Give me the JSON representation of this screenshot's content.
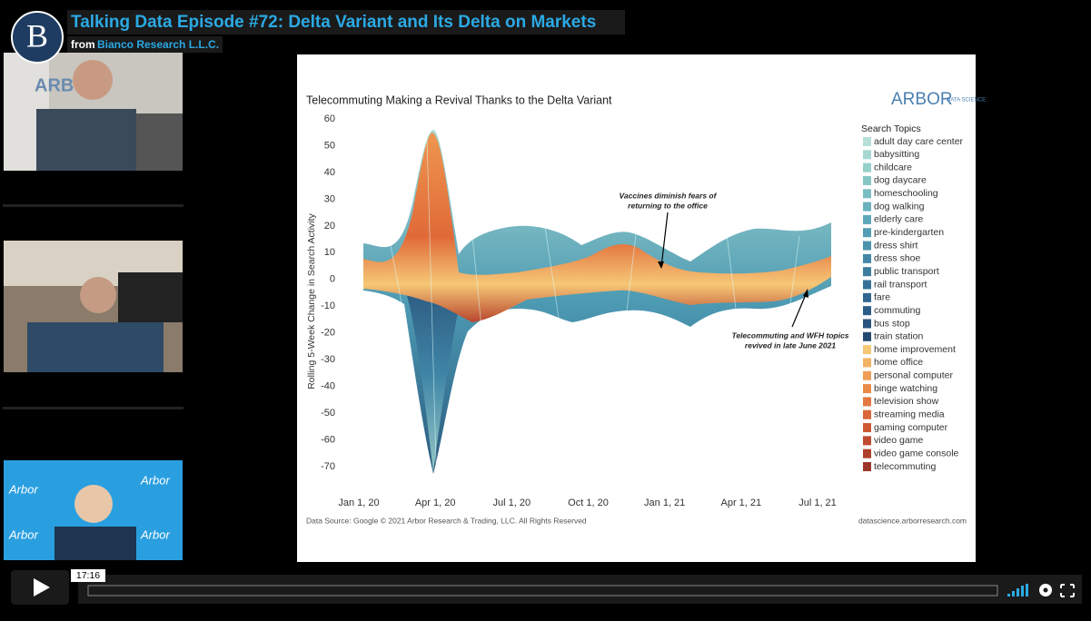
{
  "video": {
    "title": "Talking Data Episode #72: Delta Variant and Its Delta on Markets",
    "byline": "from",
    "channel": "Bianco Research L.L.C.",
    "logo": "B",
    "time": "17:16"
  },
  "slide": {
    "title": "Telecommuting Making a Revival Thanks to the Delta Variant",
    "logo": "ARBOR",
    "logo_sub": "DATA SCIENCE",
    "y_label": "Rolling 5-Week Change in Search Activity",
    "yticks": [
      60,
      50,
      40,
      30,
      20,
      10,
      0,
      -10,
      -20,
      -30,
      -40,
      -50,
      -60,
      -70
    ],
    "x_labels": [
      "Jan 1, 20",
      "Apr 1, 20",
      "Jul 1, 20",
      "Oct 1, 20",
      "Jan 1, 21",
      "Apr 1, 21",
      "Jul 1, 21"
    ],
    "annotations": [
      {
        "lines": [
          "Vaccines diminish fears of",
          "returning to the office"
        ]
      },
      {
        "lines": [
          "Telecommuting and WFH topics",
          "revived in late June 2021"
        ]
      }
    ],
    "legend": {
      "title": "Search Topics",
      "items": [
        {
          "name": "adult day care center",
          "color": "#b7e0d8"
        },
        {
          "name": "babysitting",
          "color": "#a6d8d1"
        },
        {
          "name": "childcare",
          "color": "#95d0cb"
        },
        {
          "name": "dog daycare",
          "color": "#86c7c6"
        },
        {
          "name": "homeschooling",
          "color": "#78bdc2"
        },
        {
          "name": "dog walking",
          "color": "#6ab3be"
        },
        {
          "name": "elderly care",
          "color": "#5ea9b9"
        },
        {
          "name": "pre-kindergarten",
          "color": "#539eb4"
        },
        {
          "name": "dress shirt",
          "color": "#4a93ad"
        },
        {
          "name": "dress shoe",
          "color": "#4288a7"
        },
        {
          "name": "public transport",
          "color": "#3c7da0"
        },
        {
          "name": "rail transport",
          "color": "#367298"
        },
        {
          "name": "fare",
          "color": "#30678f"
        },
        {
          "name": "commuting",
          "color": "#2c5d86"
        },
        {
          "name": "bus stop",
          "color": "#28537c"
        },
        {
          "name": "train station",
          "color": "#244972"
        },
        {
          "name": "home improvement",
          "color": "#f6c777"
        },
        {
          "name": "home office",
          "color": "#f3b264"
        },
        {
          "name": "personal computer",
          "color": "#ef9e55"
        },
        {
          "name": "binge watching",
          "color": "#ea8a49"
        },
        {
          "name": "television show",
          "color": "#e47841"
        },
        {
          "name": "streaming media",
          "color": "#da673a"
        },
        {
          "name": "gaming computer",
          "color": "#ce5834"
        },
        {
          "name": "video game",
          "color": "#bf4b30"
        },
        {
          "name": "video game console",
          "color": "#ae402c"
        },
        {
          "name": "telecommuting",
          "color": "#9b3629"
        }
      ]
    },
    "source": "Data Source: Google © 2021 Arbor Research & Trading, LLC. All Rights Reserved",
    "url": "datascience.arborresearch.com"
  }
}
